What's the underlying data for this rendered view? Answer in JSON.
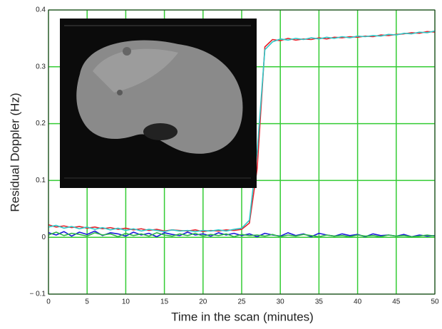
{
  "chart_data": {
    "type": "line",
    "xlabel": "Time in the scan (minutes)",
    "ylabel": "Residual Doppler (Hz)",
    "x": [
      0,
      1,
      2,
      3,
      4,
      5,
      6,
      7,
      8,
      9,
      10,
      11,
      12,
      13,
      14,
      15,
      16,
      17,
      18,
      19,
      20,
      21,
      22,
      23,
      24,
      25,
      26,
      27,
      28,
      29,
      30,
      31,
      32,
      33,
      34,
      35,
      36,
      37,
      38,
      39,
      40,
      41,
      42,
      43,
      44,
      45,
      46,
      47,
      48,
      49,
      50
    ],
    "series": [
      {
        "color": "#e8202a",
        "values": [
          0.022,
          0.018,
          0.02,
          0.017,
          0.019,
          0.016,
          0.018,
          0.015,
          0.017,
          0.014,
          0.016,
          0.013,
          0.015,
          0.012,
          0.014,
          0.011,
          0.013,
          0.012,
          0.011,
          0.013,
          0.01,
          0.012,
          0.011,
          0.013,
          0.012,
          0.014,
          0.025,
          0.12,
          0.335,
          0.348,
          0.346,
          0.35,
          0.347,
          0.349,
          0.348,
          0.351,
          0.349,
          0.352,
          0.351,
          0.353,
          0.352,
          0.354,
          0.353,
          0.356,
          0.355,
          0.357,
          0.358,
          0.36,
          0.359,
          0.362,
          0.361
        ]
      },
      {
        "color": "#1a1ad8",
        "values": [
          0.008,
          0.004,
          0.01,
          0.002,
          0.009,
          0.005,
          0.011,
          0.003,
          0.008,
          0.006,
          0.002,
          0.009,
          0.004,
          0.007,
          0.001,
          0.008,
          0.005,
          0.003,
          0.009,
          0.004,
          0.006,
          0.002,
          0.008,
          0.004,
          0.007,
          0.003,
          0.006,
          0.001,
          0.007,
          0.004,
          0.002,
          0.008,
          0.003,
          0.006,
          0.001,
          0.007,
          0.004,
          0.002,
          0.006,
          0.003,
          0.005,
          0.001,
          0.006,
          0.003,
          0.004,
          0.002,
          0.005,
          0.001,
          0.004,
          0.002,
          0.003
        ]
      },
      {
        "color": "#2fb84a",
        "values": [
          0.004,
          0.009,
          0.003,
          0.007,
          0.005,
          0.002,
          0.008,
          0.004,
          0.006,
          0.001,
          0.007,
          0.003,
          0.006,
          0.002,
          0.008,
          0.004,
          0.002,
          0.006,
          0.003,
          0.007,
          0.002,
          0.005,
          0.003,
          0.006,
          0.001,
          0.005,
          0.003,
          0.004,
          0.002,
          0.005,
          0.001,
          0.004,
          0.002,
          0.005,
          0.003,
          0.001,
          0.004,
          0.002,
          0.003,
          0.001,
          0.004,
          0.002,
          0.003,
          0.001,
          0.004,
          0.002,
          0.003,
          0.001,
          0.002,
          0.004,
          0.002
        ]
      },
      {
        "color": "#2ec8c8",
        "values": [
          0.018,
          0.021,
          0.016,
          0.019,
          0.015,
          0.018,
          0.014,
          0.017,
          0.013,
          0.016,
          0.012,
          0.015,
          0.011,
          0.014,
          0.012,
          0.01,
          0.013,
          0.011,
          0.012,
          0.01,
          0.012,
          0.011,
          0.013,
          0.011,
          0.014,
          0.016,
          0.03,
          0.15,
          0.33,
          0.344,
          0.349,
          0.347,
          0.35,
          0.348,
          0.351,
          0.349,
          0.352,
          0.35,
          0.353,
          0.351,
          0.354,
          0.353,
          0.355,
          0.354,
          0.357,
          0.356,
          0.359,
          0.358,
          0.361,
          0.36,
          0.363
        ]
      }
    ],
    "xlim": [
      0,
      50
    ],
    "xticks": [
      0,
      5,
      10,
      15,
      20,
      25,
      30,
      35,
      40,
      45,
      50
    ],
    "ylim": [
      -0.1,
      0.4
    ],
    "yticks": [
      {
        "value": -0.1,
        "label": "− 0.1"
      },
      0,
      0.1,
      0.2,
      0.3,
      0.4
    ],
    "grid": true,
    "grid_color": "#33cc33"
  }
}
